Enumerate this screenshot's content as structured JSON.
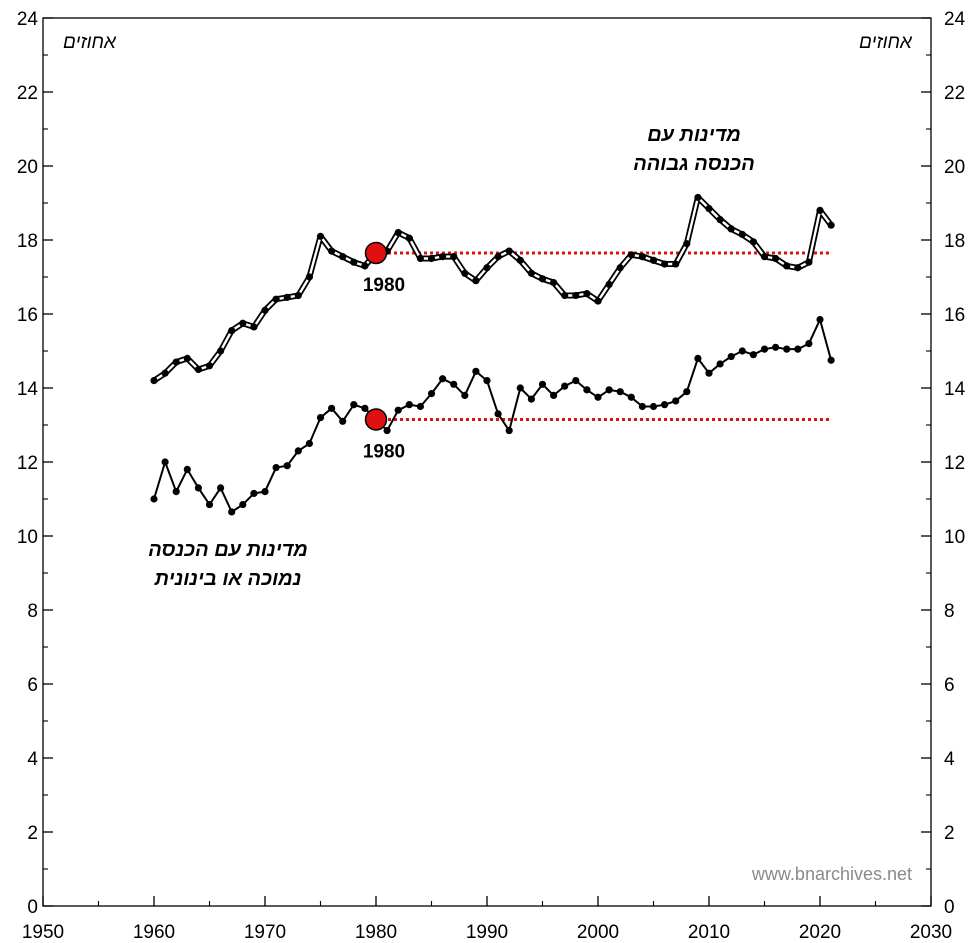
{
  "chart_data": {
    "type": "line",
    "x_range": [
      1950,
      2030
    ],
    "y_range": [
      0,
      24
    ],
    "x_ticks": [
      1950,
      1960,
      1970,
      1980,
      1990,
      2000,
      2010,
      2020,
      2030
    ],
    "y_ticks": [
      0,
      2,
      4,
      6,
      8,
      10,
      12,
      14,
      16,
      18,
      20,
      22,
      24
    ],
    "y_unit_left": "אחוזים",
    "y_unit_right": "אחוזים",
    "grid": false,
    "series": [
      {
        "name": "מדינות עם הכנסה גבוהה",
        "label_lines": [
          "מדינות עם",
          "הכנסה גבוהה"
        ],
        "style": "double-line",
        "color": "#000000",
        "x": [
          1960,
          1961,
          1962,
          1963,
          1964,
          1965,
          1966,
          1967,
          1968,
          1969,
          1970,
          1971,
          1972,
          1973,
          1974,
          1975,
          1976,
          1977,
          1978,
          1979,
          1980,
          1981,
          1982,
          1983,
          1984,
          1985,
          1986,
          1987,
          1988,
          1989,
          1990,
          1991,
          1992,
          1993,
          1994,
          1995,
          1996,
          1997,
          1998,
          1999,
          2000,
          2001,
          2002,
          2003,
          2004,
          2005,
          2006,
          2007,
          2008,
          2009,
          2010,
          2011,
          2012,
          2013,
          2014,
          2015,
          2016,
          2017,
          2018,
          2019,
          2020,
          2021
        ],
        "values": [
          14.2,
          14.4,
          14.7,
          14.8,
          14.5,
          14.6,
          15.0,
          15.55,
          15.75,
          15.65,
          16.1,
          16.4,
          16.45,
          16.5,
          17.0,
          18.1,
          17.7,
          17.55,
          17.4,
          17.3,
          17.65,
          17.7,
          18.2,
          18.05,
          17.5,
          17.5,
          17.55,
          17.55,
          17.1,
          16.9,
          17.25,
          17.55,
          17.7,
          17.45,
          17.1,
          16.95,
          16.85,
          16.5,
          16.5,
          16.55,
          16.35,
          16.8,
          17.25,
          17.6,
          17.55,
          17.45,
          17.35,
          17.35,
          17.9,
          19.15,
          18.85,
          18.55,
          18.3,
          18.15,
          17.95,
          17.55,
          17.5,
          17.3,
          17.25,
          17.4,
          18.8,
          18.4
        ]
      },
      {
        "name": "מדינות עם הכנסה נמוכה או בינונית",
        "label_lines": [
          "מדינות עם הכנסה",
          "נמוכה או בינונית"
        ],
        "style": "single-line",
        "color": "#000000",
        "x": [
          1960,
          1961,
          1962,
          1963,
          1964,
          1965,
          1966,
          1967,
          1968,
          1969,
          1970,
          1971,
          1972,
          1973,
          1974,
          1975,
          1976,
          1977,
          1978,
          1979,
          1980,
          1981,
          1982,
          1983,
          1984,
          1985,
          1986,
          1987,
          1988,
          1989,
          1990,
          1991,
          1992,
          1993,
          1994,
          1995,
          1996,
          1997,
          1998,
          1999,
          2000,
          2001,
          2002,
          2003,
          2004,
          2005,
          2006,
          2007,
          2008,
          2009,
          2010,
          2011,
          2012,
          2013,
          2014,
          2015,
          2016,
          2017,
          2018,
          2019,
          2020,
          2021
        ],
        "values": [
          11.0,
          12.0,
          11.2,
          11.8,
          11.3,
          10.85,
          11.3,
          10.65,
          10.85,
          11.15,
          11.2,
          11.85,
          11.9,
          12.3,
          12.5,
          13.2,
          13.45,
          13.1,
          13.55,
          13.45,
          13.15,
          12.85,
          13.4,
          13.55,
          13.5,
          13.85,
          14.25,
          14.1,
          13.8,
          14.45,
          14.2,
          13.3,
          12.85,
          14.0,
          13.7,
          14.1,
          13.8,
          14.05,
          14.2,
          13.95,
          13.75,
          13.95,
          13.9,
          13.75,
          13.5,
          13.5,
          13.55,
          13.65,
          13.9,
          14.8,
          14.4,
          14.65,
          14.85,
          15.0,
          14.9,
          15.05,
          15.1,
          15.05,
          15.05,
          15.2,
          15.85,
          14.75
        ]
      }
    ],
    "annotations": [
      {
        "label": "1980",
        "x": 1980,
        "y": 17.65,
        "reference_line_to": 2021,
        "color": "#e01010"
      },
      {
        "label": "1980",
        "x": 1980,
        "y": 13.15,
        "reference_line_to": 2021,
        "color": "#e01010"
      }
    ],
    "watermark": "www.bnarchives.net"
  }
}
